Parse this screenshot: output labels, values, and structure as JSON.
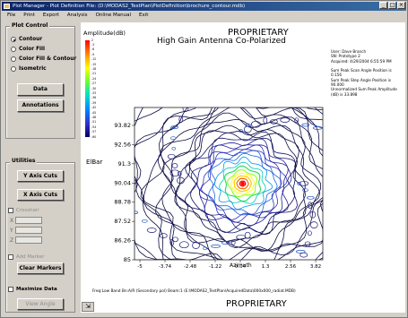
{
  "window": {
    "title": "Plot Manager - Plot Definition File: (D:\\MODAS2_TestPlan\\PlotDefinition\\brochure_contour.mdb)",
    "controls": [
      "_",
      "□",
      "×"
    ]
  },
  "menu": [
    "File",
    "Print",
    "Export",
    "Analysis",
    "Online Manual",
    "Exit"
  ],
  "plot_control": {
    "title": "Plot Control",
    "options": [
      {
        "label": "Contour",
        "selected": true
      },
      {
        "label": "Color Fill",
        "selected": false
      },
      {
        "label": "Color Fill & Contour",
        "selected": false
      },
      {
        "label": "Isometric",
        "selected": false
      }
    ],
    "data_button": "Data",
    "annotations_button": "Annotations"
  },
  "utilities": {
    "title": "Utilities",
    "y_axis_button": "Y Axis Cuts",
    "x_axis_button": "X Axis Cuts",
    "crosshair_label": "Crosshair",
    "x_label": "X",
    "y_label": "Y",
    "z_label": "Z",
    "add_marker_label": "Add Marker",
    "clear_markers_button": "Clear Markers",
    "maximize_label": "Maximize Data",
    "view_angle_button": "View Angle"
  },
  "plot": {
    "header": "PROPRIETARY",
    "footer": "PROPRIETARY",
    "title": "High Gain Antenna  Co-Polarized",
    "colorbar_label": "Amplitude(dB)",
    "colorbar_ticks": [
      "2",
      "-3",
      "-6",
      "-9",
      "-12",
      "-15",
      "-18",
      "-21",
      "-24",
      "-27",
      "-30",
      "-33",
      "-36",
      "-39",
      "-42",
      "-45",
      "-48",
      "-51",
      "-54",
      "-57",
      "-60"
    ],
    "info": [
      "User: Dave Branch",
      "SN: Prototype 2",
      "Acquired: 4/29/2004 6:55:59 PM",
      "",
      "Sum Peak Scan Angle Position  is",
      "0.156",
      "Sum Peak Step Angle Position  is",
      "90.000",
      "Unnormalized Sum Peak Amplitude",
      "(dB)  is 33.898"
    ],
    "footnote": "Freq:Low Band  Bn:A/R (Secondary pol)  Beam:1   (E:\\MODAS2_TestPlan\\AcquiredData\\000x000_radiat.MDB)"
  },
  "chart_data": {
    "type": "heatmap",
    "title": "High Gain Antenna  Co-Polarized",
    "xlabel": "Azimuth",
    "ylabel": "ElBar",
    "x_ticks": [
      "-5",
      "-3.74",
      "-2.48",
      "-1.22",
      "0.04",
      "1.3",
      "2.56",
      "3.82"
    ],
    "y_ticks": [
      "93.82",
      "92.56",
      "91.3",
      "90.04",
      "88.78",
      "87.52",
      "86.26",
      "85"
    ],
    "peak": {
      "x": 0.156,
      "y": 90.0,
      "amplitude_db": 33.898
    },
    "colorbar_range_db": [
      -60,
      2
    ],
    "colors": [
      "#ff0000",
      "#ff8800",
      "#ffff00",
      "#66ff33",
      "#00ddcc",
      "#0088ff",
      "#3333cc",
      "#000066"
    ]
  }
}
